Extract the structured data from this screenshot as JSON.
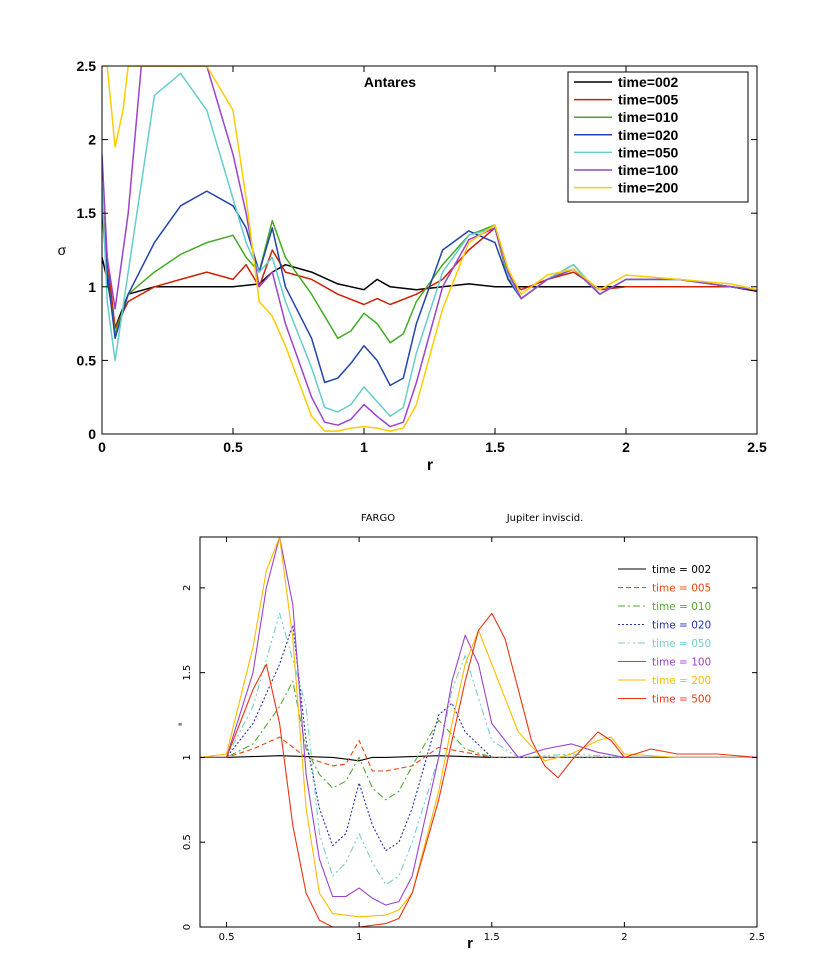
{
  "chart_data": [
    {
      "type": "line",
      "title": "Antares",
      "xlabel": "r",
      "ylabel": "σ",
      "xlim": [
        0,
        2.5
      ],
      "ylim": [
        0,
        2.5
      ],
      "xticks": [
        "0",
        "0.5",
        "1",
        "1.5",
        "2",
        "2.5"
      ],
      "yticks": [
        "0",
        "0.5",
        "1",
        "1.5",
        "2",
        "2.5"
      ],
      "grid": false,
      "legend_position": "top-right",
      "series": [
        {
          "name": "time=002",
          "color": "#000000",
          "dash": "",
          "x": [
            0,
            0.02,
            0.05,
            0.1,
            0.2,
            0.3,
            0.4,
            0.5,
            0.6,
            0.65,
            0.7,
            0.8,
            0.9,
            1.0,
            1.05,
            1.1,
            1.2,
            1.3,
            1.4,
            1.5,
            1.6,
            1.8,
            2.0,
            2.2,
            2.4,
            2.5
          ],
          "y": [
            1.2,
            1.05,
            0.72,
            0.95,
            1.0,
            1.0,
            1.0,
            1.0,
            1.02,
            1.1,
            1.15,
            1.1,
            1.02,
            0.98,
            1.05,
            1.0,
            0.98,
            1.0,
            1.02,
            1.0,
            1.0,
            1.0,
            1.0,
            1.0,
            1.0,
            0.97
          ]
        },
        {
          "name": "time=005",
          "color": "#cc2200",
          "dash": "",
          "x": [
            0,
            0.02,
            0.05,
            0.1,
            0.2,
            0.3,
            0.4,
            0.5,
            0.55,
            0.6,
            0.65,
            0.7,
            0.8,
            0.9,
            1.0,
            1.05,
            1.1,
            1.2,
            1.3,
            1.4,
            1.5,
            1.55,
            1.6,
            1.7,
            1.8,
            1.9,
            2.0,
            2.2,
            2.4,
            2.5
          ],
          "y": [
            1.6,
            1.2,
            0.72,
            0.9,
            1.0,
            1.05,
            1.1,
            1.05,
            1.15,
            1.0,
            1.25,
            1.1,
            1.05,
            0.95,
            0.88,
            0.92,
            0.88,
            0.95,
            1.05,
            1.25,
            1.4,
            1.05,
            0.98,
            1.05,
            1.1,
            0.98,
            1.0,
            1.0,
            1.0,
            0.98
          ]
        },
        {
          "name": "time=010",
          "color": "#44aa22",
          "dash": "",
          "x": [
            0,
            0.02,
            0.05,
            0.1,
            0.2,
            0.3,
            0.4,
            0.5,
            0.55,
            0.6,
            0.65,
            0.7,
            0.8,
            0.9,
            0.95,
            1.0,
            1.05,
            1.1,
            1.15,
            1.2,
            1.3,
            1.4,
            1.5,
            1.55,
            1.6,
            1.7,
            1.8,
            1.9,
            2.0,
            2.2,
            2.4,
            2.5
          ],
          "y": [
            1.5,
            1.1,
            0.68,
            0.95,
            1.1,
            1.22,
            1.3,
            1.35,
            1.2,
            1.1,
            1.45,
            1.2,
            0.95,
            0.65,
            0.7,
            0.82,
            0.75,
            0.62,
            0.68,
            0.9,
            1.15,
            1.35,
            1.42,
            1.05,
            0.92,
            1.05,
            1.15,
            0.95,
            1.05,
            1.05,
            1.0,
            0.98
          ]
        },
        {
          "name": "time=020",
          "color": "#2244aa",
          "dash": "",
          "x": [
            0,
            0.02,
            0.05,
            0.1,
            0.2,
            0.3,
            0.4,
            0.5,
            0.55,
            0.6,
            0.65,
            0.7,
            0.8,
            0.85,
            0.9,
            0.95,
            1.0,
            1.05,
            1.1,
            1.15,
            1.2,
            1.3,
            1.4,
            1.5,
            1.55,
            1.6,
            1.7,
            1.8,
            1.9,
            2.0,
            2.2,
            2.4,
            2.5
          ],
          "y": [
            1.55,
            1.1,
            0.65,
            0.95,
            1.3,
            1.55,
            1.65,
            1.55,
            1.4,
            1.1,
            1.4,
            1.0,
            0.65,
            0.35,
            0.38,
            0.48,
            0.6,
            0.5,
            0.33,
            0.38,
            0.75,
            1.25,
            1.38,
            1.3,
            1.05,
            0.92,
            1.05,
            1.12,
            0.95,
            1.05,
            1.05,
            1.0,
            0.98
          ]
        },
        {
          "name": "time=050",
          "color": "#66cccc",
          "dash": "",
          "x": [
            0,
            0.02,
            0.05,
            0.1,
            0.2,
            0.3,
            0.4,
            0.5,
            0.55,
            0.6,
            0.65,
            0.7,
            0.8,
            0.85,
            0.9,
            0.95,
            1.0,
            1.05,
            1.1,
            1.15,
            1.2,
            1.3,
            1.4,
            1.5,
            1.55,
            1.6,
            1.7,
            1.8,
            1.9,
            2.0,
            2.2,
            2.4,
            2.5
          ],
          "y": [
            1.7,
            0.9,
            0.5,
            1.1,
            2.3,
            2.45,
            2.2,
            1.6,
            1.3,
            1.1,
            1.2,
            0.9,
            0.45,
            0.18,
            0.15,
            0.2,
            0.32,
            0.22,
            0.12,
            0.18,
            0.55,
            1.1,
            1.35,
            1.4,
            1.08,
            0.92,
            1.05,
            1.15,
            0.95,
            1.05,
            1.05,
            1.0,
            0.98
          ]
        },
        {
          "name": "time=100",
          "color": "#9944cc",
          "dash": "",
          "x": [
            0,
            0.02,
            0.05,
            0.1,
            0.15,
            0.2,
            0.3,
            0.4,
            0.5,
            0.55,
            0.6,
            0.65,
            0.7,
            0.8,
            0.85,
            0.9,
            0.95,
            1.0,
            1.05,
            1.1,
            1.15,
            1.2,
            1.3,
            1.4,
            1.5,
            1.55,
            1.6,
            1.7,
            1.8,
            1.9,
            2.0,
            2.2,
            2.4,
            2.5
          ],
          "y": [
            1.9,
            1.2,
            0.85,
            1.5,
            2.5,
            2.5,
            2.5,
            2.5,
            1.9,
            1.5,
            1.0,
            1.1,
            0.75,
            0.25,
            0.08,
            0.06,
            0.1,
            0.2,
            0.12,
            0.05,
            0.08,
            0.35,
            1.0,
            1.32,
            1.4,
            1.1,
            0.92,
            1.05,
            1.12,
            0.95,
            1.05,
            1.05,
            1.0,
            0.98
          ]
        },
        {
          "name": "time=200",
          "color": "#ffcc00",
          "dash": "",
          "x": [
            0,
            0.02,
            0.05,
            0.08,
            0.1,
            0.2,
            0.3,
            0.4,
            0.5,
            0.55,
            0.6,
            0.65,
            0.7,
            0.8,
            0.85,
            0.9,
            0.95,
            1.0,
            1.05,
            1.1,
            1.15,
            1.2,
            1.3,
            1.4,
            1.5,
            1.55,
            1.6,
            1.7,
            1.8,
            1.9,
            2.0,
            2.2,
            2.4,
            2.5
          ],
          "y": [
            2.5,
            2.5,
            1.95,
            2.2,
            2.5,
            2.5,
            2.5,
            2.5,
            2.2,
            1.6,
            0.9,
            0.8,
            0.6,
            0.12,
            0.02,
            0.02,
            0.04,
            0.05,
            0.04,
            0.02,
            0.04,
            0.2,
            0.85,
            1.3,
            1.42,
            1.12,
            0.95,
            1.08,
            1.12,
            0.98,
            1.08,
            1.05,
            1.02,
            0.98
          ]
        }
      ]
    },
    {
      "type": "line",
      "title": "FARGO",
      "subtitle": "Jupiter inviscid.",
      "xlabel": "r",
      "ylabel": "\"",
      "xlim": [
        0.4,
        2.5
      ],
      "ylim": [
        0,
        2.3
      ],
      "xticks": [
        "0.5",
        "1",
        "1.5",
        "2",
        "2.5"
      ],
      "yticks": [
        "0",
        "0.5",
        "1",
        "1.5",
        "2"
      ],
      "grid": false,
      "legend_position": "top-right",
      "series": [
        {
          "name": "time = 002",
          "color": "#000000",
          "dash": "",
          "x": [
            0.4,
            0.5,
            0.7,
            0.9,
            0.95,
            1.0,
            1.05,
            1.1,
            1.3,
            1.5,
            1.7,
            1.9,
            2.1,
            2.3,
            2.5
          ],
          "y": [
            1.0,
            1.0,
            1.01,
            1.0,
            0.99,
            0.98,
            1.0,
            1.0,
            1.01,
            1.0,
            1.0,
            1.0,
            1.0,
            1.0,
            1.0
          ]
        },
        {
          "name": "time = 005",
          "color": "#ee4411",
          "dash": "5,3",
          "x": [
            0.4,
            0.5,
            0.6,
            0.7,
            0.8,
            0.9,
            0.95,
            1.0,
            1.05,
            1.1,
            1.2,
            1.3,
            1.4,
            1.5,
            1.7,
            2.0,
            2.5
          ],
          "y": [
            1.0,
            1.0,
            1.05,
            1.12,
            1.0,
            0.95,
            0.96,
            1.1,
            0.92,
            0.92,
            0.95,
            1.06,
            1.03,
            1.0,
            1.0,
            1.0,
            1.0
          ]
        },
        {
          "name": "time = 010",
          "color": "#55aa33",
          "dash": "7,3,2,3",
          "x": [
            0.4,
            0.5,
            0.6,
            0.7,
            0.75,
            0.8,
            0.85,
            0.9,
            0.95,
            1.0,
            1.05,
            1.1,
            1.15,
            1.2,
            1.3,
            1.4,
            1.5,
            1.7,
            2.0,
            2.5
          ],
          "y": [
            1.0,
            1.0,
            1.08,
            1.3,
            1.45,
            1.05,
            0.9,
            0.82,
            0.86,
            1.0,
            0.82,
            0.75,
            0.8,
            0.95,
            1.22,
            1.05,
            1.0,
            1.0,
            1.0,
            1.0
          ]
        },
        {
          "name": "time = 020",
          "color": "#2233aa",
          "dash": "2,2",
          "x": [
            0.4,
            0.5,
            0.6,
            0.7,
            0.75,
            0.8,
            0.85,
            0.9,
            0.95,
            1.0,
            1.05,
            1.1,
            1.15,
            1.2,
            1.3,
            1.35,
            1.4,
            1.5,
            1.7,
            2.0,
            2.5
          ],
          "y": [
            1.0,
            1.0,
            1.2,
            1.55,
            1.78,
            1.1,
            0.7,
            0.48,
            0.55,
            0.85,
            0.6,
            0.45,
            0.5,
            0.7,
            1.25,
            1.32,
            1.15,
            1.0,
            1.0,
            1.0,
            1.0
          ]
        },
        {
          "name": "time = 050",
          "color": "#77cccc",
          "dash": "7,3,2,3,2,3",
          "x": [
            0.4,
            0.5,
            0.6,
            0.7,
            0.8,
            0.85,
            0.9,
            0.95,
            1.0,
            1.05,
            1.1,
            1.15,
            1.2,
            1.3,
            1.35,
            1.4,
            1.45,
            1.5,
            1.6,
            1.8,
            2.0,
            2.5
          ],
          "y": [
            1.0,
            1.0,
            1.3,
            1.85,
            1.3,
            0.55,
            0.3,
            0.38,
            0.55,
            0.38,
            0.25,
            0.3,
            0.5,
            1.0,
            1.4,
            1.6,
            1.35,
            1.1,
            1.0,
            1.02,
            1.0,
            1.0
          ]
        },
        {
          "name": "time = 100",
          "color": "#9944cc",
          "dash": "",
          "x": [
            0.4,
            0.5,
            0.6,
            0.65,
            0.7,
            0.75,
            0.8,
            0.85,
            0.9,
            0.95,
            1.0,
            1.05,
            1.1,
            1.15,
            1.2,
            1.3,
            1.35,
            1.4,
            1.45,
            1.5,
            1.6,
            1.7,
            1.8,
            1.9,
            2.0,
            2.2,
            2.5
          ],
          "y": [
            1.0,
            1.0,
            1.5,
            2.0,
            2.3,
            1.9,
            0.9,
            0.4,
            0.18,
            0.18,
            0.23,
            0.17,
            0.13,
            0.15,
            0.3,
            1.0,
            1.45,
            1.72,
            1.55,
            1.2,
            1.0,
            1.05,
            1.08,
            1.03,
            1.0,
            1.0,
            1.0
          ]
        },
        {
          "name": "time = 200",
          "color": "#ffbb00",
          "dash": "",
          "x": [
            0.4,
            0.5,
            0.6,
            0.65,
            0.7,
            0.75,
            0.8,
            0.85,
            0.9,
            1.0,
            1.1,
            1.15,
            1.2,
            1.3,
            1.35,
            1.4,
            1.45,
            1.5,
            1.6,
            1.7,
            1.8,
            1.9,
            1.95,
            2.0,
            2.2,
            2.5
          ],
          "y": [
            1.0,
            1.02,
            1.65,
            2.1,
            2.3,
            1.7,
            0.7,
            0.2,
            0.08,
            0.06,
            0.07,
            0.1,
            0.2,
            0.8,
            1.2,
            1.55,
            1.75,
            1.55,
            1.15,
            0.98,
            1.02,
            1.1,
            1.12,
            1.02,
            1.0,
            1.0
          ]
        },
        {
          "name": "time = 500",
          "color": "#ee3311",
          "dash": "",
          "x": [
            0.4,
            0.5,
            0.55,
            0.6,
            0.65,
            0.7,
            0.75,
            0.8,
            0.85,
            0.9,
            1.0,
            1.1,
            1.15,
            1.2,
            1.3,
            1.35,
            1.4,
            1.45,
            1.5,
            1.55,
            1.6,
            1.65,
            1.7,
            1.75,
            1.8,
            1.9,
            1.95,
            2.0,
            2.1,
            2.2,
            2.35,
            2.5
          ],
          "y": [
            1.0,
            1.0,
            1.2,
            1.4,
            1.55,
            1.2,
            0.6,
            0.2,
            0.04,
            0.0,
            0.0,
            0.02,
            0.05,
            0.2,
            0.75,
            1.1,
            1.45,
            1.75,
            1.85,
            1.7,
            1.4,
            1.1,
            0.95,
            0.88,
            0.98,
            1.15,
            1.1,
            1.0,
            1.05,
            1.02,
            1.02,
            1.0
          ]
        }
      ]
    }
  ]
}
